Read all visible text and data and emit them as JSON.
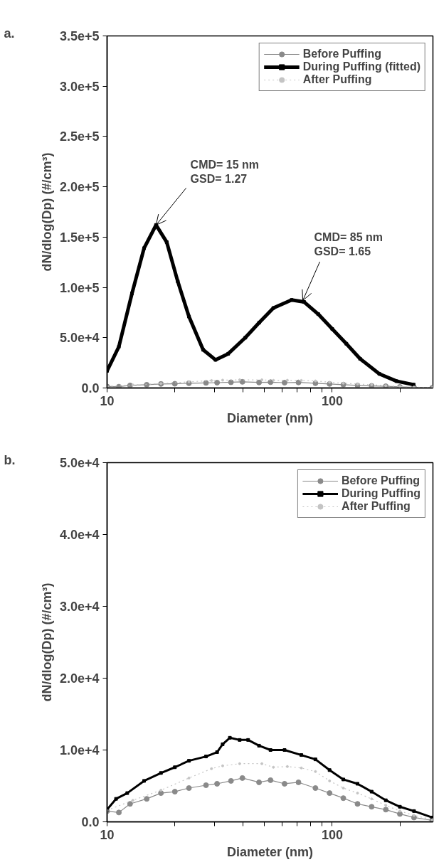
{
  "chart_data": [
    {
      "type": "line",
      "title": "a.",
      "xlabel": "Diameter (nm)",
      "ylabel": "dN/dlog(Dp) (#/cm³)",
      "log": "x",
      "grid": false,
      "legend": "top right",
      "xlim": [
        10,
        280
      ],
      "xticks": [
        10,
        {
          "value": 20,
          "label": null
        },
        {
          "value": 30,
          "label": null
        },
        {
          "value": 40,
          "label": null
        },
        {
          "value": 50,
          "label": null
        },
        {
          "value": 60,
          "label": null
        },
        {
          "value": 70,
          "label": null
        },
        {
          "value": 80,
          "label": null
        },
        {
          "value": 90,
          "label": null
        },
        100,
        {
          "value": 200,
          "label": null
        }
      ],
      "ylim": [
        0,
        350000
      ],
      "yticks": [
        {
          "value": 0,
          "label": "0.0"
        },
        {
          "value": 50000,
          "label": "5.0e+4"
        },
        {
          "value": 100000,
          "label": "1.0e+5"
        },
        {
          "value": 150000,
          "label": "1.5e+5"
        },
        {
          "value": 200000,
          "label": "2.0e+5"
        },
        {
          "value": 250000,
          "label": "2.5e+5"
        },
        {
          "value": 300000,
          "label": "3.0e+5"
        },
        {
          "value": 350000,
          "label": "3.5e+5"
        }
      ],
      "annotations": [
        {
          "text": "CMD= 15 nm\nGSD=  1.27",
          "x": 16.5,
          "y": 162000
        },
        {
          "text": "CMD= 85 nm\nGSD= 1.65",
          "x": 74,
          "y": 87000
        }
      ],
      "series": [
        {
          "name": "Before Puffing",
          "color": "#8a8a8a",
          "marker": "circle",
          "line_style": "solid",
          "x": [
            10,
            11.28,
            12.65,
            15.0,
            17.35,
            20.0,
            23.1,
            27.5,
            30.8,
            35.5,
            39.9,
            47.3,
            53.2,
            61.4,
            70.8,
            84.2,
            97.3,
            112,
            129.5,
            149.6,
            172.9,
            199.7,
            230.7,
            278
          ],
          "values": [
            1500,
            1300,
            2500,
            3200,
            4000,
            4200,
            4700,
            5100,
            5300,
            5700,
            6100,
            5500,
            5800,
            5300,
            5500,
            4700,
            4000,
            3300,
            2500,
            2100,
            1700,
            1100,
            600,
            200
          ]
        },
        {
          "name": "During Puffing (fitted)",
          "color": "#000000",
          "marker": "square",
          "line_style": "solid",
          "x": [
            10,
            11.28,
            12.9,
            14.6,
            16.5,
            18.4,
            20.6,
            23.1,
            26.7,
            30.3,
            34.5,
            41.1,
            47.4,
            54.8,
            66.0,
            75.0,
            86.6,
            100,
            115.5,
            133,
            162,
            193,
            230
          ],
          "values": [
            17000,
            41000,
            94000,
            139000,
            162000,
            145000,
            106000,
            71000,
            38000,
            28000,
            34000,
            50000,
            65000,
            79500,
            87500,
            85500,
            73500,
            58700,
            44000,
            29000,
            14000,
            6800,
            3300
          ]
        },
        {
          "name": "After Puffing",
          "color": "#c4c4c4",
          "marker": "circle",
          "line_style": "dotted",
          "x": [
            10,
            13.02,
            17.35,
            23.1,
            29.1,
            32.6,
            38.8,
            48.7,
            54.8,
            63.2,
            72.9,
            84.2,
            97.3,
            112,
            129.5,
            149.6,
            172.9,
            199.7,
            230.7,
            278
          ],
          "values": [
            1600,
            3000,
            4400,
            6100,
            7400,
            7800,
            8100,
            8100,
            7600,
            7700,
            7500,
            7000,
            5700,
            4700,
            4000,
            3200,
            2300,
            1500,
            900,
            300
          ]
        }
      ]
    },
    {
      "type": "line",
      "title": "b.",
      "xlabel": "Diameter (nm)",
      "ylabel": "dN/dlog(Dp) (#/cm³)",
      "log": "x",
      "grid": false,
      "legend": "top right",
      "xlim": [
        10,
        280
      ],
      "xticks": [
        10,
        {
          "value": 20,
          "label": null
        },
        {
          "value": 30,
          "label": null
        },
        {
          "value": 40,
          "label": null
        },
        {
          "value": 50,
          "label": null
        },
        {
          "value": 60,
          "label": null
        },
        {
          "value": 70,
          "label": null
        },
        {
          "value": 80,
          "label": null
        },
        {
          "value": 90,
          "label": null
        },
        100,
        {
          "value": 200,
          "label": null
        }
      ],
      "ylim": [
        0,
        50000
      ],
      "yticks": [
        {
          "value": 0,
          "label": "0.0"
        },
        {
          "value": 10000,
          "label": "1.0e+4"
        },
        {
          "value": 20000,
          "label": "2.0e+4"
        },
        {
          "value": 30000,
          "label": "3.0e+4"
        },
        {
          "value": 40000,
          "label": "4.0e+4"
        },
        {
          "value": 50000,
          "label": "5.0e+4"
        }
      ],
      "series": [
        {
          "name": "Before Puffing",
          "color": "#8a8a8a",
          "marker": "circle",
          "line_style": "solid",
          "x": [
            10,
            11.28,
            12.65,
            15.0,
            17.35,
            20.0,
            23.1,
            27.5,
            30.8,
            35.5,
            39.9,
            47.3,
            53.2,
            61.4,
            70.8,
            84.2,
            97.3,
            112,
            129.5,
            149.6,
            172.9,
            199.7,
            230.7,
            278
          ],
          "values": [
            1500,
            1300,
            2500,
            3200,
            4000,
            4200,
            4700,
            5100,
            5300,
            5700,
            6100,
            5500,
            5800,
            5300,
            5500,
            4700,
            4000,
            3300,
            2500,
            2100,
            1700,
            1100,
            600,
            200
          ]
        },
        {
          "name": "During Puffing",
          "color": "#000000",
          "marker": "square",
          "line_style": "solid",
          "x": [
            10,
            10.96,
            12.29,
            14.6,
            17.35,
            20.0,
            23.1,
            27.5,
            30.8,
            32.6,
            35.1,
            38.8,
            42.3,
            47.3,
            53.2,
            61.4,
            72.9,
            84.2,
            97.3,
            112,
            129.5,
            149.6,
            172.9,
            199.7,
            230.7,
            278
          ],
          "values": [
            1700,
            3200,
            4000,
            5700,
            6800,
            7600,
            8500,
            9100,
            9700,
            10800,
            11700,
            11400,
            11400,
            10600,
            10000,
            10000,
            9300,
            8700,
            7200,
            5900,
            5300,
            4200,
            3000,
            2100,
            1500,
            600
          ]
        },
        {
          "name": "After Puffing",
          "color": "#c4c4c4",
          "marker": "circle",
          "line_style": "dotted",
          "x": [
            10,
            13.02,
            17.35,
            23.1,
            29.1,
            32.6,
            38.8,
            48.7,
            54.8,
            63.2,
            72.9,
            84.2,
            97.3,
            112,
            129.5,
            149.6,
            172.9,
            199.7,
            230.7,
            278
          ],
          "values": [
            1600,
            3000,
            4400,
            6100,
            7400,
            7800,
            8100,
            8100,
            7600,
            7700,
            7500,
            7000,
            5700,
            4700,
            4000,
            3200,
            2300,
            1500,
            900,
            300
          ]
        }
      ]
    }
  ]
}
